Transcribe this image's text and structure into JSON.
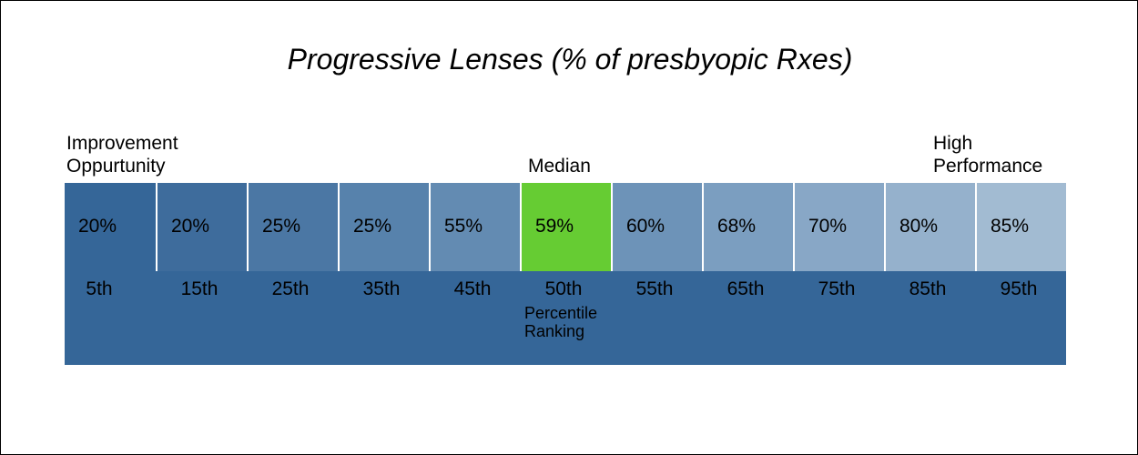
{
  "chart_data": {
    "type": "table",
    "title": "Progressive Lenses (% of presbyopic Rxes)",
    "low_label": [
      "Improvement",
      "Oppurtunity"
    ],
    "high_label": [
      "High",
      "Performance"
    ],
    "median_label": "Median",
    "axis_label": [
      "Percentile",
      "Ranking"
    ],
    "percentiles": [
      "5th",
      "15th",
      "25th",
      "35th",
      "45th",
      "50th",
      "55th",
      "65th",
      "75th",
      "85th",
      "95th"
    ],
    "value_labels": [
      "20%",
      "20%",
      "25%",
      "25%",
      "55%",
      "59%",
      "60%",
      "68%",
      "70%",
      "80%",
      "85%"
    ],
    "values": [
      20,
      20,
      25,
      25,
      55,
      59,
      60,
      68,
      70,
      80,
      85
    ],
    "highlight_index": 5
  },
  "colors": {
    "cells": [
      "#356698",
      "#3e6c9c",
      "#4b77a4",
      "#5782ac",
      "#638bb2",
      "#66cc33",
      "#6d93b8",
      "#7b9ec0",
      "#88a7c6",
      "#95b1cc",
      "#a2bbd2"
    ],
    "band": "#356698",
    "highlight": "#66cc33"
  }
}
